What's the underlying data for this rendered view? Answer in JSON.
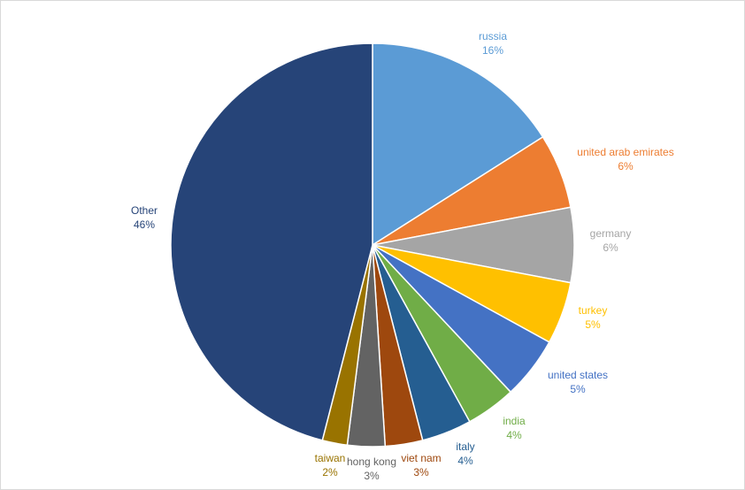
{
  "chart_data": {
    "type": "pie",
    "title": "",
    "value_format": "{v}%",
    "slices": [
      {
        "label": "russia",
        "value": 16,
        "color": "#5B9BD5"
      },
      {
        "label": "united arab emirates",
        "value": 6,
        "color": "#ED7D31"
      },
      {
        "label": "germany",
        "value": 6,
        "color": "#A5A5A5"
      },
      {
        "label": "turkey",
        "value": 5,
        "color": "#FFC000"
      },
      {
        "label": "united states",
        "value": 5,
        "color": "#4472C4"
      },
      {
        "label": "india",
        "value": 4,
        "color": "#70AD47"
      },
      {
        "label": "italy",
        "value": 4,
        "color": "#255E91"
      },
      {
        "label": "viet nam",
        "value": 3,
        "color": "#9E480E"
      },
      {
        "label": "hong kong",
        "value": 3,
        "color": "#636363"
      },
      {
        "label": "taiwan",
        "value": 2,
        "color": "#997300"
      },
      {
        "label": "Other",
        "value": 46,
        "color": "#264478"
      }
    ]
  }
}
